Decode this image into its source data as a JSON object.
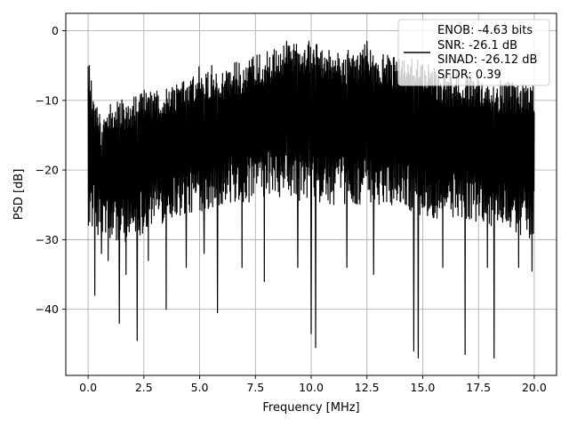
{
  "chart_data": {
    "type": "line",
    "title": "",
    "xlabel": "Frequency [MHz]",
    "ylabel": "PSD [dB]",
    "xlim": [
      -1.0,
      21.0
    ],
    "ylim": [
      -49.5,
      2.5
    ],
    "x_ticks": [
      0.0,
      2.5,
      5.0,
      7.5,
      10.0,
      12.5,
      15.0,
      17.5,
      20.0
    ],
    "x_tick_labels": [
      "0.0",
      "2.5",
      "5.0",
      "7.5",
      "10.0",
      "12.5",
      "15.0",
      "17.5",
      "20.0"
    ],
    "y_ticks": [
      0,
      -10,
      -20,
      -30,
      -40
    ],
    "y_tick_labels": [
      "0",
      "−10",
      "−20",
      "−30",
      "−40"
    ],
    "grid": true,
    "legend_position": "top-right",
    "legend_entries": [
      "ENOB: -4.63 bits",
      "SNR: -26.1 dB",
      "SINAD: -26.12 dB",
      "SFDR: 0.39"
    ],
    "series": [
      {
        "color": "#000000",
        "x_start": 0.0,
        "x_end": 20.0,
        "envelope_upper": [
          [
            0,
            -5
          ],
          [
            0.5,
            -12
          ],
          [
            1,
            -10
          ],
          [
            2,
            -9
          ],
          [
            3,
            -8
          ],
          [
            4,
            -7
          ],
          [
            5,
            -5
          ],
          [
            6,
            -5
          ],
          [
            7,
            -4
          ],
          [
            8,
            -3
          ],
          [
            8.9,
            -1.5
          ],
          [
            9.9,
            -1.5
          ],
          [
            11,
            -3
          ],
          [
            12.5,
            -2.5
          ],
          [
            13,
            -3
          ],
          [
            14,
            -4
          ],
          [
            15,
            -4
          ],
          [
            16,
            -6
          ],
          [
            17,
            -6
          ],
          [
            18,
            -7
          ],
          [
            19,
            -7
          ],
          [
            20,
            -8
          ]
        ],
        "envelope_lower": [
          [
            0,
            -28
          ],
          [
            1,
            -31
          ],
          [
            2,
            -30
          ],
          [
            3,
            -28
          ],
          [
            4,
            -27
          ],
          [
            5,
            -26
          ],
          [
            6,
            -25
          ],
          [
            7,
            -25
          ],
          [
            8,
            -24
          ],
          [
            9,
            -24
          ],
          [
            10,
            -25
          ],
          [
            11,
            -25
          ],
          [
            12,
            -25
          ],
          [
            13,
            -25
          ],
          [
            14,
            -25
          ],
          [
            15,
            -27
          ],
          [
            16,
            -27
          ],
          [
            17,
            -27
          ],
          [
            18,
            -28
          ],
          [
            19,
            -29
          ],
          [
            20,
            -30
          ]
        ],
        "dips": [
          [
            0.3,
            -38
          ],
          [
            0.6,
            -32
          ],
          [
            0.9,
            -33
          ],
          [
            1.4,
            -42
          ],
          [
            1.7,
            -35
          ],
          [
            2.2,
            -44.5
          ],
          [
            2.7,
            -33
          ],
          [
            3.5,
            -40
          ],
          [
            4.4,
            -34
          ],
          [
            5.2,
            -32
          ],
          [
            5.8,
            -40.5
          ],
          [
            6.9,
            -34
          ],
          [
            7.9,
            -36
          ],
          [
            9.4,
            -34
          ],
          [
            10.0,
            -43.5
          ],
          [
            10.2,
            -45.5
          ],
          [
            11.6,
            -34
          ],
          [
            12.8,
            -35
          ],
          [
            14.6,
            -46
          ],
          [
            14.8,
            -47
          ],
          [
            15.9,
            -34
          ],
          [
            16.9,
            -46.5
          ],
          [
            17.9,
            -34
          ],
          [
            18.2,
            -47
          ],
          [
            19.3,
            -34
          ],
          [
            19.9,
            -34.5
          ]
        ],
        "peaks": [
          [
            0.05,
            -5
          ],
          [
            8.9,
            -1.5
          ],
          [
            9.0,
            -2.5
          ],
          [
            9.9,
            -1.5
          ],
          [
            12.4,
            -2
          ],
          [
            12.5,
            -1.5
          ]
        ]
      }
    ]
  }
}
